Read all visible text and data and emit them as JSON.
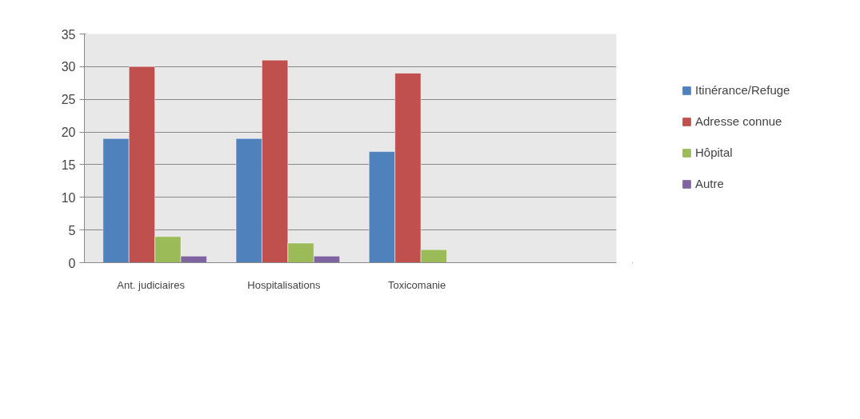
{
  "chart_data": {
    "type": "bar",
    "categories": [
      "Ant. judiciaires",
      "Hospitalisations",
      "Toxicomanie",
      null
    ],
    "series": [
      {
        "name": "Itinérance/Refuge",
        "color": "#4f81bd",
        "values": [
          19,
          19,
          17,
          null
        ]
      },
      {
        "name": "Adresse connue",
        "color": "#c0504d",
        "values": [
          30,
          31,
          29,
          null
        ]
      },
      {
        "name": "Hôpital",
        "color": "#9bbb59",
        "values": [
          4,
          3,
          2,
          null
        ]
      },
      {
        "name": "Autre",
        "color": "#8064a2",
        "values": [
          1,
          1,
          null,
          null
        ]
      }
    ],
    "ylim": [
      0,
      35
    ],
    "yticks": [
      0,
      5,
      10,
      15,
      20,
      25,
      30,
      35
    ],
    "grid": "y",
    "legend": "right"
  }
}
